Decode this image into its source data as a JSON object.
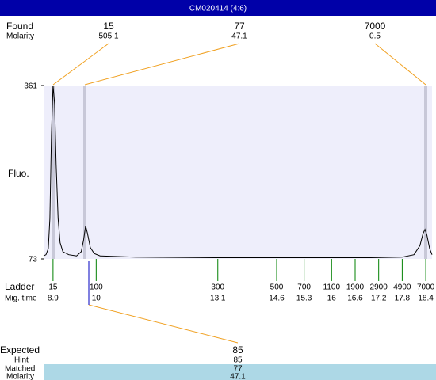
{
  "title": "CM020414 (4:6)",
  "found": {
    "label": "Found",
    "molarity_label": "Molarity",
    "peaks": [
      {
        "size": 15,
        "molarity": 505.1
      },
      {
        "size": 77,
        "molarity": 47.1
      },
      {
        "size": 7000,
        "molarity": 0.5
      }
    ]
  },
  "chart_data": {
    "type": "line",
    "y_label": "Fluo.",
    "color": "#000000",
    "x": [
      8.66,
      8.72,
      8.78,
      8.82,
      8.86,
      8.9,
      8.94,
      8.98,
      9.03,
      9.08,
      9.15,
      9.3,
      9.5,
      9.62,
      9.68,
      9.73,
      9.78,
      9.85,
      9.95,
      10.1,
      11,
      13,
      15,
      17,
      17.8,
      18.1,
      18.25,
      18.33,
      18.38,
      18.43,
      18.5,
      18.56
    ],
    "values": [
      78,
      80,
      90,
      140,
      280,
      361,
      330,
      230,
      140,
      100,
      85,
      80,
      78,
      85,
      105,
      128,
      115,
      92,
      82,
      78,
      76,
      75,
      75,
      75,
      76,
      80,
      95,
      115,
      122,
      112,
      90,
      80
    ],
    "xlim": [
      8.66,
      18.56
    ],
    "ylim": [
      73,
      361
    ],
    "yticks": [
      73,
      361
    ]
  },
  "ladder": {
    "label": "Ladder",
    "time_label": "Mig. time",
    "sizes": [
      15,
      100,
      300,
      500,
      700,
      1100,
      1900,
      2900,
      4900,
      7000
    ],
    "times": [
      8.9,
      10,
      13.1,
      14.6,
      15.3,
      16,
      16.6,
      17.2,
      17.8,
      18.4
    ]
  },
  "expected": {
    "label": "Expected",
    "value": 85,
    "hint_label": "Hint",
    "hint": 85,
    "matched_label": "Matched",
    "matched": 77,
    "molarity_label": "Molarity",
    "molarity": 47.1
  }
}
